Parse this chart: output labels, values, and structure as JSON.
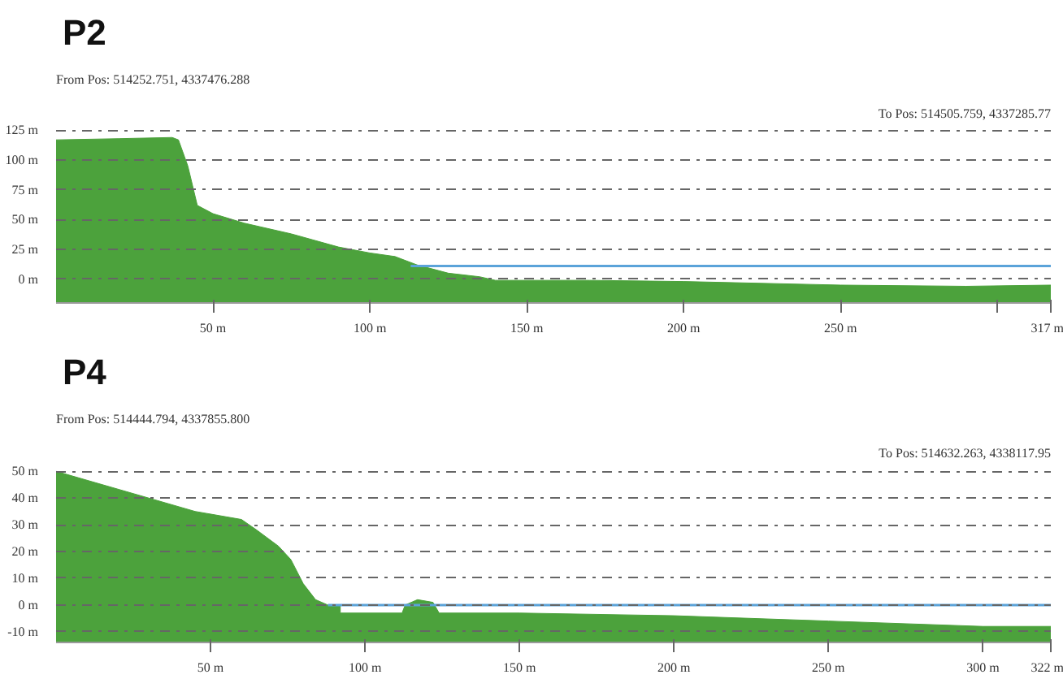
{
  "chart_data": [
    {
      "type": "area",
      "title": "P2",
      "subtitle": "From Pos: 514252.751, 4337476.288",
      "annotations": [
        "To Pos: 514505.759, 4337285.77"
      ],
      "xlim": [
        0,
        317
      ],
      "xticks": [
        {
          "value": 50,
          "label": "50 m"
        },
        {
          "value": 100,
          "label": "100 m"
        },
        {
          "value": 150,
          "label": "150 m"
        },
        {
          "value": 200,
          "label": "200 m"
        },
        {
          "value": 250,
          "label": "250 m"
        },
        {
          "value": 300,
          "label": null
        },
        {
          "value": 317,
          "label": "317 m"
        }
      ],
      "ylim": [
        -20,
        126
      ],
      "yticks": [
        {
          "value": 0,
          "label": "0 m"
        },
        {
          "value": 25,
          "label": "25 m"
        },
        {
          "value": 50,
          "label": "50 m"
        },
        {
          "value": 75,
          "label": "75 m"
        },
        {
          "value": 100,
          "label": "100 m"
        },
        {
          "value": 125,
          "label": "125 m"
        }
      ],
      "grid": "y",
      "series": [
        {
          "color": "#4ca23c",
          "x": [
            0,
            20,
            37,
            39,
            42,
            45,
            50,
            60,
            75,
            90,
            100,
            108,
            115,
            125,
            135,
            140,
            170,
            200,
            250,
            290,
            317
          ],
          "values": [
            117,
            118,
            119,
            117,
            95,
            62,
            55,
            47,
            38,
            27,
            22,
            19,
            12,
            5,
            2,
            -1,
            -1,
            -2,
            -5,
            -6,
            -5
          ]
        },
        {
          "type": "line",
          "color": "#5ba3d9",
          "x": [
            113,
            317
          ],
          "values": [
            11,
            11
          ]
        }
      ]
    },
    {
      "type": "area",
      "title": "P4",
      "subtitle": "From Pos: 514444.794, 4337855.800",
      "annotations": [
        "To Pos: 514632.263, 4338117.95"
      ],
      "xlim": [
        0,
        322
      ],
      "xticks": [
        {
          "value": 50,
          "label": "50 m"
        },
        {
          "value": 100,
          "label": "100 m"
        },
        {
          "value": 150,
          "label": "150 m"
        },
        {
          "value": 200,
          "label": "200 m"
        },
        {
          "value": 250,
          "label": "250 m"
        },
        {
          "value": 300,
          "label": "300 m"
        },
        {
          "value": 322,
          "label": "322 m"
        }
      ],
      "ylim": [
        -14,
        51
      ],
      "yticks": [
        {
          "value": -10,
          "label": "-10 m"
        },
        {
          "value": 0,
          "label": "0 m"
        },
        {
          "value": 10,
          "label": "10 m"
        },
        {
          "value": 20,
          "label": "20 m"
        },
        {
          "value": 30,
          "label": "30 m"
        },
        {
          "value": 40,
          "label": "40 m"
        },
        {
          "value": 50,
          "label": "50 m"
        }
      ],
      "grid": "y",
      "series": [
        {
          "color": "#4ca23c",
          "x": [
            0,
            15,
            30,
            45,
            55,
            60,
            65,
            72,
            76,
            80,
            84,
            88,
            92,
            92,
            112,
            113,
            117,
            122,
            124,
            150,
            200,
            250,
            300,
            322
          ],
          "values": [
            50,
            45,
            40,
            35,
            33,
            32,
            28,
            22,
            17,
            8,
            2,
            0,
            0,
            -3,
            -3,
            0,
            2,
            1,
            -3,
            -3,
            -4,
            -6,
            -8,
            -8
          ]
        },
        {
          "type": "line",
          "color": "#5ba3d9",
          "x": [
            88,
            322
          ],
          "values": [
            0,
            0
          ]
        }
      ]
    }
  ]
}
